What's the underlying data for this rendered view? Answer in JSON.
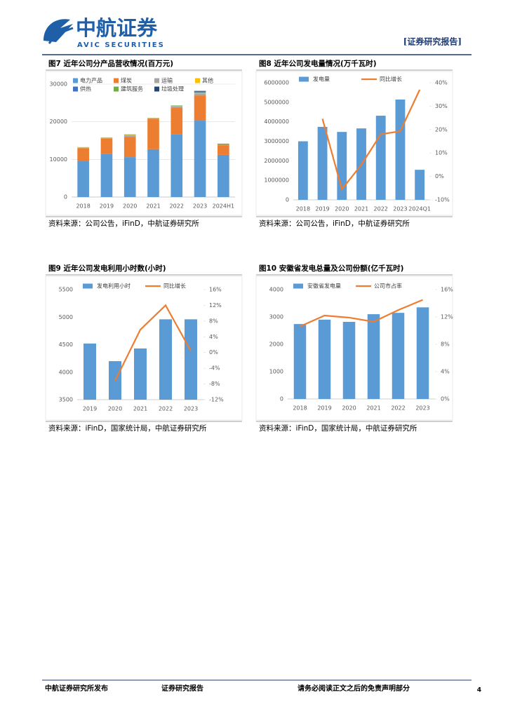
{
  "header": {
    "brand": "中航证券",
    "brand_en": "AVIC SECURITIES",
    "report_tag": "[证券研究报告]"
  },
  "chart_data": [
    {
      "type": "bar",
      "stacked": true,
      "title": "图7 近年公司分产品营收情况(百万元)",
      "source": "资料来源：公司公告，iFinD，中航证券研究所",
      "categories": [
        "2018",
        "2019",
        "2020",
        "2021",
        "2022",
        "2023",
        "2024H1"
      ],
      "ylim": [
        0,
        30000
      ],
      "yticks": [
        0,
        10000,
        20000,
        30000
      ],
      "grid": true,
      "series": [
        {
          "name": "电力产品",
          "color": "#5b9bd5",
          "values": [
            9500,
            11500,
            10600,
            12700,
            16600,
            20300,
            11200
          ]
        },
        {
          "name": "煤炭",
          "color": "#ed7d31",
          "values": [
            3500,
            4000,
            5400,
            8000,
            7200,
            6700,
            2600
          ]
        },
        {
          "name": "运输",
          "color": "#a5a5a5",
          "values": [
            100,
            200,
            300,
            200,
            300,
            400,
            100
          ]
        },
        {
          "name": "其他",
          "color": "#ffc000",
          "values": [
            100,
            100,
            200,
            100,
            100,
            200,
            100
          ]
        },
        {
          "name": "供热",
          "color": "#4472c4",
          "values": [
            50,
            50,
            50,
            50,
            50,
            100,
            50
          ]
        },
        {
          "name": "建筑服务",
          "color": "#70ad47",
          "values": [
            0,
            0,
            100,
            0,
            100,
            300,
            0
          ]
        },
        {
          "name": "垃圾处理",
          "color": "#264478",
          "values": [
            0,
            0,
            0,
            0,
            0,
            200,
            100
          ]
        }
      ]
    },
    {
      "type": "combo",
      "title": "图8 近年公司发电量情况(万千瓦时)",
      "source": "资料来源：公司公告，iFinD，中航证券研究所",
      "categories": [
        "2018",
        "2019",
        "2020",
        "2021",
        "2022",
        "2023",
        "2024Q1"
      ],
      "ylim": [
        0,
        6000000
      ],
      "yticks": [
        0,
        1000000,
        2000000,
        3000000,
        4000000,
        5000000,
        6000000
      ],
      "y2lim": [
        -10,
        40
      ],
      "y2ticks": [
        {
          "value": -10,
          "label": "-10%"
        },
        {
          "value": 0,
          "label": "0%"
        },
        {
          "value": 10,
          "label": "10%"
        },
        {
          "value": 20,
          "label": "20%"
        },
        {
          "value": 30,
          "label": "30%"
        },
        {
          "value": 40,
          "label": "40%"
        }
      ],
      "series": [
        {
          "name": "发电量",
          "type": "bar",
          "color": "#5b9bd5",
          "values": [
            3000000,
            3740000,
            3480000,
            3660000,
            4310000,
            5140000,
            1540000
          ]
        },
        {
          "name": "同比增长",
          "type": "line",
          "axis": "y2",
          "color": "#ed7d31",
          "values": [
            null,
            24.6,
            -5.5,
            5,
            18,
            19.3,
            37
          ]
        }
      ]
    },
    {
      "type": "combo",
      "title": "图9 近年公司发电利用小时数(小时)",
      "source": "资料来源：iFinD，国家统计局，中航证券研究所",
      "categories": [
        "2019",
        "2020",
        "2021",
        "2022",
        "2023"
      ],
      "ylim": [
        3500,
        5500
      ],
      "yticks": [
        3500,
        4000,
        4500,
        5000,
        5500
      ],
      "y2lim": [
        -12,
        16
      ],
      "y2ticks": [
        {
          "value": -12,
          "label": "-12%"
        },
        {
          "value": -8,
          "label": "-8%"
        },
        {
          "value": -4,
          "label": "-4%"
        },
        {
          "value": 0,
          "label": "0%"
        },
        {
          "value": 4,
          "label": "4%"
        },
        {
          "value": 8,
          "label": "8%"
        },
        {
          "value": 12,
          "label": "12%"
        },
        {
          "value": 16,
          "label": "16%"
        }
      ],
      "series": [
        {
          "name": "发电利用小时",
          "type": "bar",
          "color": "#5b9bd5",
          "values": [
            4520,
            4200,
            4430,
            4960,
            4960
          ]
        },
        {
          "name": "同比增长",
          "type": "line",
          "axis": "y2",
          "color": "#ed7d31",
          "values": [
            null,
            -7.2,
            5.8,
            12,
            0.4
          ]
        }
      ]
    },
    {
      "type": "combo",
      "title": "图10 安徽省发电总量及公司份额(亿千瓦时)",
      "source": "资料来源：iFinD，国家统计局，中航证券研究所",
      "categories": [
        "2018",
        "2019",
        "2020",
        "2021",
        "2022",
        "2023"
      ],
      "ylim": [
        0,
        4000
      ],
      "yticks": [
        0,
        1000,
        2000,
        3000,
        4000
      ],
      "y2lim": [
        0,
        16
      ],
      "y2ticks": [
        {
          "value": 0,
          "label": "0%"
        },
        {
          "value": 4,
          "label": "4%"
        },
        {
          "value": 8,
          "label": "8%"
        },
        {
          "value": 12,
          "label": "12%"
        },
        {
          "value": 16,
          "label": "16%"
        }
      ],
      "series": [
        {
          "name": "安徽省发电量",
          "type": "bar",
          "color": "#5b9bd5",
          "values": [
            2740,
            2900,
            2820,
            3100,
            3150,
            3350
          ]
        },
        {
          "name": "公司市占率",
          "type": "line",
          "axis": "y2",
          "color": "#ed7d31",
          "values": [
            10.6,
            12.2,
            11.9,
            11.3,
            13,
            14.5
          ]
        }
      ]
    }
  ],
  "footer": {
    "publisher": "中航证券研究所发布",
    "report": "证券研究报告",
    "disclaimer": "请务必阅读正文之后的免责声明部分",
    "page": "4"
  }
}
